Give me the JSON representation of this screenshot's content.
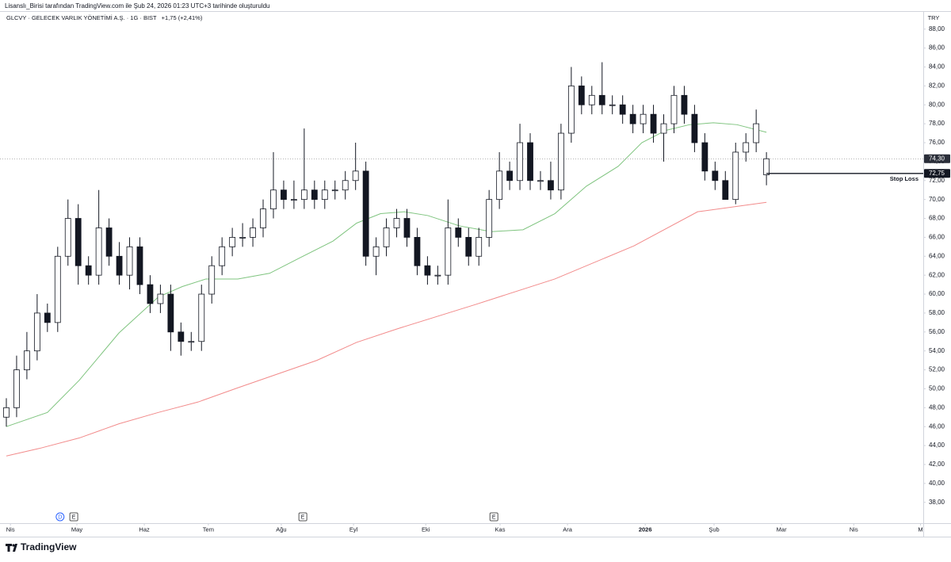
{
  "header": {
    "attribution": "Lisanslı_Birisi tarafından TradingView.com ile Şub 24, 2026 01:23 UTC+3 tarihinde oluşturuldu"
  },
  "footer": {
    "brand": "TradingView"
  },
  "chart_data": {
    "type": "candlestick",
    "title": "GLCVY · GELECEK VARLIK YÖNETİMİ A.Ş. · 1G · BIST",
    "change": "+1,75 (+2,41%)",
    "currency": "TRY",
    "x": [
      0,
      3,
      6,
      9,
      12,
      15,
      18,
      21,
      24,
      27,
      30,
      33,
      36,
      39,
      42,
      45,
      48,
      51,
      54,
      57,
      60,
      63,
      66,
      69,
      72,
      75,
      78,
      81,
      84,
      87,
      90,
      93,
      96,
      99,
      102,
      105,
      108,
      111,
      114,
      117,
      120,
      123,
      126,
      129,
      132,
      135,
      138,
      141,
      144,
      147,
      150,
      153,
      156,
      159,
      162,
      165,
      168,
      171,
      174,
      177,
      180,
      183,
      186,
      189,
      192,
      195,
      198,
      201,
      204,
      207,
      210,
      213,
      216,
      219,
      222
    ],
    "open": [
      47,
      48,
      52,
      54,
      58,
      57,
      64,
      68,
      63,
      62,
      67,
      64,
      62,
      65,
      61,
      59,
      60,
      56,
      55,
      55,
      60,
      63,
      65,
      66,
      66,
      67,
      69,
      71,
      70,
      70,
      71,
      70,
      71,
      71,
      72,
      73,
      64,
      65,
      67,
      68,
      66,
      63,
      62,
      62,
      67,
      66,
      64,
      66,
      70,
      73,
      72,
      76,
      72,
      72,
      71,
      77,
      82,
      80,
      81,
      80,
      80,
      79,
      78,
      79,
      77,
      78,
      81,
      79,
      76,
      73,
      72,
      70,
      75,
      76,
      72.6
    ],
    "high": [
      49,
      53.5,
      56,
      60,
      59,
      65,
      70,
      69.5,
      64,
      71,
      68,
      65.5,
      66,
      66,
      62,
      61,
      61,
      57,
      56,
      61,
      64,
      66,
      67,
      67.5,
      68,
      70,
      75,
      72,
      72,
      77.5,
      72,
      72,
      72,
      73,
      76,
      74,
      66,
      68,
      69,
      69,
      67,
      64,
      63,
      70,
      68,
      67,
      67,
      71,
      75,
      74,
      78,
      77,
      73,
      74,
      78,
      84,
      83,
      82,
      84.5,
      81,
      81,
      80,
      80,
      80,
      79,
      82,
      82,
      80,
      77,
      74,
      73,
      76,
      77,
      79.5,
      75
    ],
    "low": [
      46,
      47,
      51,
      53,
      56,
      56,
      63,
      61,
      61,
      61,
      63,
      61,
      60.5,
      60,
      58,
      58,
      54,
      53.5,
      54,
      54,
      59,
      62,
      64,
      65,
      65,
      66,
      68,
      69,
      69,
      69,
      69,
      69,
      70,
      70,
      71,
      63,
      62,
      64,
      66,
      65,
      62,
      61,
      61,
      61,
      65,
      63,
      63,
      65,
      69,
      71,
      71,
      71,
      71,
      70,
      70,
      76,
      79,
      79,
      79,
      79,
      78,
      77,
      77,
      76,
      74,
      77,
      78,
      75,
      72,
      71,
      70,
      69.5,
      74,
      75,
      71.5
    ],
    "close": [
      48,
      52,
      54,
      58,
      57,
      64,
      68,
      63,
      62,
      67,
      64,
      62,
      65,
      61,
      59,
      60,
      56,
      55,
      55,
      60,
      63,
      65,
      66,
      66,
      67,
      69,
      71,
      70,
      70,
      71,
      70,
      71,
      71,
      72,
      73,
      64,
      65,
      67,
      68,
      66,
      63,
      62,
      62,
      67,
      66,
      64,
      66,
      70,
      73,
      72,
      76,
      72,
      72,
      71,
      77,
      82,
      80,
      81,
      80,
      80,
      79,
      78,
      79,
      77,
      78,
      81,
      79,
      76,
      73,
      72,
      70,
      75,
      76,
      78,
      74.3
    ],
    "series": [
      {
        "color": "#7fc47f",
        "x": [
          0,
          12,
          21.3,
          32.9,
          44.4,
          51.4,
          58.3,
          67.6,
          76.9,
          86.1,
          95.4,
          102.3,
          109.3,
          116.2,
          123.1,
          132.4,
          141.7,
          150.9,
          160.2,
          169.4,
          178.7,
          185.6,
          192.6,
          199.5,
          206.5,
          213.4,
          222
        ],
        "values": [
          46,
          47.5,
          50.9,
          55.9,
          59.7,
          60.8,
          61.6,
          61.6,
          62.2,
          63.9,
          65.6,
          67.5,
          68.5,
          68.7,
          68.3,
          67.2,
          66.6,
          66.8,
          68.5,
          71.4,
          73.5,
          76,
          77.3,
          77.9,
          78.1,
          77.9,
          77.1
        ]
      },
      {
        "color": "#f28b8b",
        "x": [
          0,
          9.7,
          21.3,
          32.9,
          44.4,
          56,
          67.6,
          90.7,
          102.3,
          113.9,
          137,
          160.2,
          183.3,
          201.9,
          222
        ],
        "values": [
          42.9,
          43.7,
          44.8,
          46.3,
          47.5,
          48.6,
          50.1,
          53,
          54.9,
          56.3,
          58.9,
          61.6,
          65.1,
          68.7,
          69.7
        ]
      }
    ],
    "last_price": {
      "value": 74.3,
      "label": "74,30"
    },
    "stop_loss": {
      "value": 72.75,
      "label": "72,75",
      "text": "Stop Loss"
    },
    "events": [
      {
        "label": "D",
        "x": 15.7
      },
      {
        "label": "E",
        "x": 19.7
      },
      {
        "label": "E",
        "x": 86.6
      },
      {
        "label": "E",
        "x": 142.4
      }
    ],
    "xlim": [
      -1.85,
      267.8
    ],
    "xticks": [
      {
        "value": 1.2,
        "label": "Nis"
      },
      {
        "value": 20.6,
        "label": "May"
      },
      {
        "value": 40.3,
        "label": "Haz"
      },
      {
        "value": 59,
        "label": "Tem"
      },
      {
        "value": 80.3,
        "label": "Ağu"
      },
      {
        "value": 101.4,
        "label": "Eyl"
      },
      {
        "value": 122.5,
        "label": "Eki"
      },
      {
        "value": 144.2,
        "label": "Kas"
      },
      {
        "value": 163.9,
        "label": "Ara"
      },
      {
        "value": 186.6,
        "label": "2026"
      },
      {
        "value": 206.7,
        "label": "Şub"
      },
      {
        "value": 226.4,
        "label": "Mar"
      },
      {
        "value": 247.5,
        "label": "Nis"
      },
      {
        "value": 267,
        "label": "M"
      }
    ],
    "ylim": [
      35.8,
      89.4
    ],
    "yticks": [
      {
        "value": 38,
        "label": "38,00"
      },
      {
        "value": 40,
        "label": "40,00"
      },
      {
        "value": 42,
        "label": "42,00"
      },
      {
        "value": 44,
        "label": "44,00"
      },
      {
        "value": 46,
        "label": "46,00"
      },
      {
        "value": 48,
        "label": "48,00"
      },
      {
        "value": 50,
        "label": "50,00"
      },
      {
        "value": 52,
        "label": "52,00"
      },
      {
        "value": 54,
        "label": "54,00"
      },
      {
        "value": 56,
        "label": "56,00"
      },
      {
        "value": 58,
        "label": "58,00"
      },
      {
        "value": 60,
        "label": "60,00"
      },
      {
        "value": 62,
        "label": "62,00"
      },
      {
        "value": 64,
        "label": "64,00"
      },
      {
        "value": 66,
        "label": "66,00"
      },
      {
        "value": 68,
        "label": "68,00"
      },
      {
        "value": 70,
        "label": "70,00"
      },
      {
        "value": 72,
        "label": "72,00"
      },
      {
        "value": 74,
        "label": "74,00"
      },
      {
        "value": 76,
        "label": "76,00"
      },
      {
        "value": 78,
        "label": "78,00"
      },
      {
        "value": 80,
        "label": "80,00"
      },
      {
        "value": 82,
        "label": "82,00"
      },
      {
        "value": 84,
        "label": "84,00"
      },
      {
        "value": 86,
        "label": "86,00"
      },
      {
        "value": 88,
        "label": "88,00"
      }
    ]
  }
}
